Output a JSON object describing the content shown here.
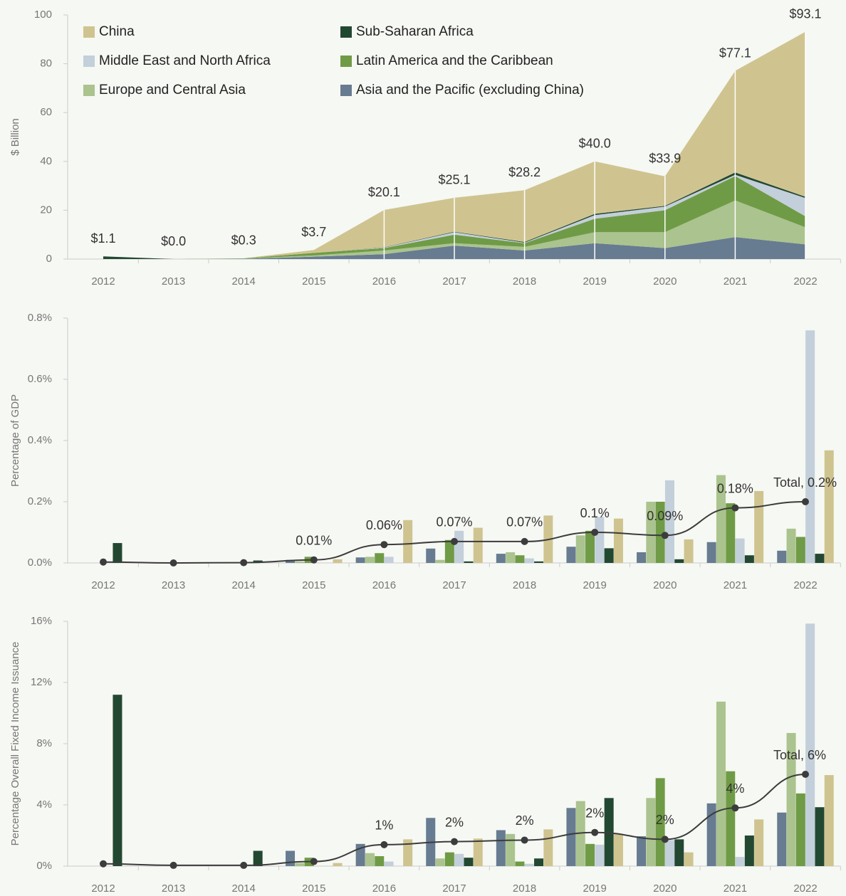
{
  "chart_data": [
    {
      "type": "area",
      "ylabel": "$ Billion",
      "categories": [
        "2012",
        "2013",
        "2014",
        "2015",
        "2016",
        "2017",
        "2018",
        "2019",
        "2020",
        "2021",
        "2022"
      ],
      "ylim": [
        0,
        100
      ],
      "yticks": [
        0,
        20,
        40,
        60,
        80,
        100
      ],
      "series": [
        {
          "name": "Asia and the Pacific (excluding China)",
          "color": "#677b91",
          "values": [
            0,
            0,
            0.1,
            1.0,
            2.0,
            5.5,
            3.5,
            6.5,
            4.5,
            9.0,
            6.0
          ]
        },
        {
          "name": "Europe and Central Asia",
          "color": "#abc38e",
          "values": [
            0,
            0,
            0.1,
            0.5,
            1.5,
            1.0,
            1.5,
            4.5,
            6.5,
            15.0,
            7.0
          ]
        },
        {
          "name": "Latin America and the Caribbean",
          "color": "#6f9b46",
          "values": [
            0,
            0,
            0.1,
            1.0,
            1.0,
            3.5,
            1.5,
            5.5,
            9.0,
            10.0,
            4.5
          ]
        },
        {
          "name": "Middle East and North Africa",
          "color": "#c3cfda",
          "values": [
            0,
            0,
            0,
            0,
            0.2,
            1.0,
            0.2,
            1.5,
            1.5,
            0.5,
            7.5
          ]
        },
        {
          "name": "Sub-Saharan Africa",
          "color": "#234832",
          "values": [
            1.1,
            0,
            0,
            0,
            0.1,
            0.2,
            0.3,
            0.5,
            0.3,
            1.0,
            0.5
          ]
        },
        {
          "name": "China",
          "color": "#cfc490",
          "values": [
            0,
            0,
            0,
            1.2,
            15.3,
            13.9,
            21.2,
            21.5,
            12.1,
            41.6,
            67.6
          ]
        }
      ],
      "totals": [
        1.1,
        0.0,
        0.3,
        3.7,
        20.1,
        25.1,
        28.2,
        40.0,
        33.9,
        77.1,
        93.1
      ],
      "total_labels": [
        "$1.1",
        "$0.0",
        "$0.3",
        "$3.7",
        "$20.1",
        "$25.1",
        "$28.2",
        "$40.0",
        "$33.9",
        "$77.1",
        "$93.1"
      ]
    },
    {
      "type": "bar",
      "ylabel": "Percentage of GDP",
      "categories": [
        "2012",
        "2013",
        "2014",
        "2015",
        "2016",
        "2017",
        "2018",
        "2019",
        "2020",
        "2021",
        "2022"
      ],
      "ylim": [
        0,
        0.8
      ],
      "yticks": [
        {
          "value": 0,
          "label": "0.0%"
        },
        {
          "value": 0.2,
          "label": "0.2%"
        },
        {
          "value": 0.4,
          "label": "0.4%"
        },
        {
          "value": 0.6,
          "label": "0.6%"
        },
        {
          "value": 0.8,
          "label": "0.8%"
        }
      ],
      "series": [
        {
          "color": "#677b91",
          "values": [
            0,
            0,
            0,
            0.01,
            0.018,
            0.047,
            0.03,
            0.053,
            0.035,
            0.068,
            0.04
          ]
        },
        {
          "color": "#abc38e",
          "values": [
            0,
            0,
            0,
            0.005,
            0.02,
            0.01,
            0.035,
            0.09,
            0.2,
            0.287,
            0.112
          ]
        },
        {
          "color": "#6f9b46",
          "values": [
            0,
            0,
            0,
            0.02,
            0.032,
            0.075,
            0.025,
            0.105,
            0.2,
            0.195,
            0.085
          ]
        },
        {
          "color": "#c3cfda",
          "values": [
            0,
            0,
            0,
            0,
            0.02,
            0.105,
            0.015,
            0.15,
            0.27,
            0.08,
            0.76
          ]
        },
        {
          "color": "#234832",
          "values": [
            0.065,
            0,
            0.008,
            0,
            0,
            0.005,
            0.005,
            0.048,
            0.012,
            0.025,
            0.03
          ]
        },
        {
          "color": "#cfc490",
          "values": [
            0,
            0,
            0,
            0.012,
            0.14,
            0.115,
            0.155,
            0.145,
            0.077,
            0.235,
            0.368
          ]
        }
      ],
      "total": {
        "color": "#3c3c3c",
        "values": [
          0.003,
          0,
          0.001,
          0.01,
          0.06,
          0.07,
          0.07,
          0.1,
          0.09,
          0.18,
          0.2
        ],
        "value_labels": [
          null,
          null,
          null,
          "0.01%",
          "0.06%",
          "0.07%",
          "0.07%",
          "0.1%",
          "0.09%",
          "0.18%",
          "Total, 0.2%"
        ]
      }
    },
    {
      "type": "bar",
      "ylabel": "Percentage Overall Fixed Income Issuance",
      "categories": [
        "2012",
        "2013",
        "2014",
        "2015",
        "2016",
        "2017",
        "2018",
        "2019",
        "2020",
        "2021",
        "2022"
      ],
      "ylim": [
        0,
        16
      ],
      "yticks": [
        {
          "value": 0,
          "label": "0%"
        },
        {
          "value": 4,
          "label": "4%"
        },
        {
          "value": 8,
          "label": "8%"
        },
        {
          "value": 12,
          "label": "12%"
        },
        {
          "value": 16,
          "label": "16%"
        }
      ],
      "series": [
        {
          "color": "#677b91",
          "values": [
            0,
            0,
            0,
            1.0,
            1.45,
            3.15,
            2.35,
            3.8,
            1.95,
            4.1,
            3.5
          ]
        },
        {
          "color": "#abc38e",
          "values": [
            0,
            0,
            0,
            0.2,
            0.85,
            0.5,
            2.1,
            4.25,
            4.45,
            10.75,
            8.7
          ]
        },
        {
          "color": "#6f9b46",
          "values": [
            0,
            0,
            0,
            0.55,
            0.65,
            0.9,
            0.3,
            1.45,
            5.75,
            6.2,
            4.75
          ]
        },
        {
          "color": "#c3cfda",
          "values": [
            0,
            0,
            0,
            0,
            0.3,
            0.8,
            0.15,
            1.4,
            1.7,
            0.6,
            15.85
          ]
        },
        {
          "color": "#234832",
          "values": [
            11.2,
            0,
            1.0,
            0,
            0,
            0.55,
            0.5,
            4.45,
            1.75,
            2.0,
            3.85
          ]
        },
        {
          "color": "#cfc490",
          "values": [
            0,
            0,
            0,
            0.2,
            1.75,
            1.8,
            2.4,
            2.1,
            0.9,
            3.05,
            5.95
          ]
        }
      ],
      "total": {
        "color": "#3c3c3c",
        "values": [
          0.15,
          0.05,
          0.05,
          0.3,
          1.4,
          1.6,
          1.7,
          2.2,
          1.75,
          3.8,
          6.0
        ],
        "value_labels": [
          null,
          null,
          null,
          null,
          "1%",
          "2%",
          "2%",
          "2%",
          "2%",
          "4%",
          "Total, 6%"
        ]
      }
    }
  ]
}
